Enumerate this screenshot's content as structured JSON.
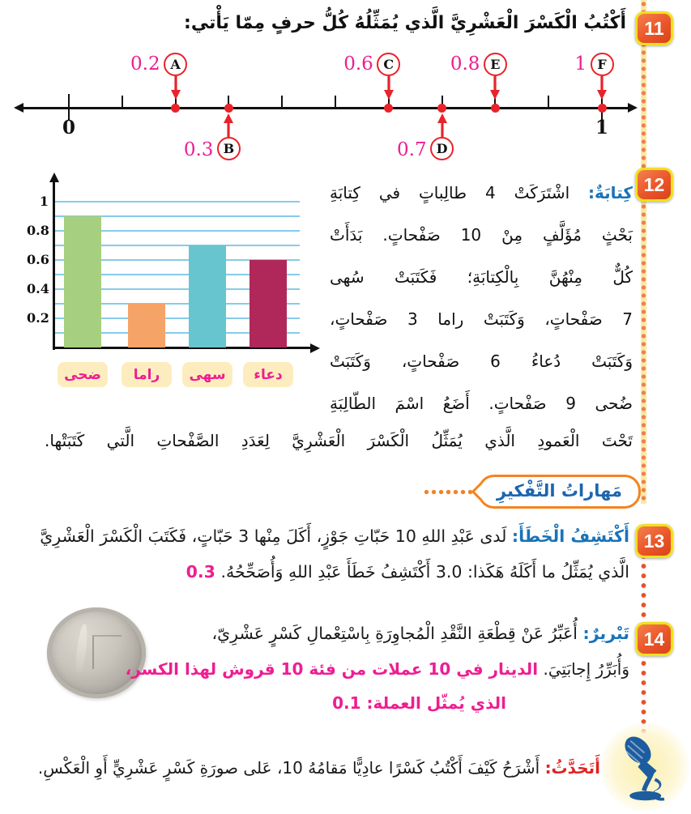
{
  "p11": {
    "number": "11",
    "title": "أَكْتُبُ الْكَسْرَ الْعَشْرِيَّ الَّذي يُمَثِّلُهُ كُلُّ حرفٍ مِمّا يَأْتي:",
    "number_line": {
      "min_label": "0",
      "max_label": "1",
      "ticks": 11,
      "points_above": [
        {
          "id": "A",
          "value": "0.2",
          "pos": 0.2
        },
        {
          "id": "C",
          "value": "0.6",
          "pos": 0.6
        },
        {
          "id": "E",
          "value": "0.8",
          "pos": 0.8
        },
        {
          "id": "F",
          "value": "1",
          "pos": 1.0
        }
      ],
      "points_below": [
        {
          "id": "B",
          "value": "0.3",
          "pos": 0.3
        },
        {
          "id": "D",
          "value": "0.7",
          "pos": 0.7
        }
      ]
    }
  },
  "p12": {
    "number": "12",
    "heading": "كِتابَةٌ:",
    "lines": [
      "اشْتَرَكَتْ 4 طالِباتٍ في كِتابَةِ",
      "بَحْثٍ مُؤَلَّفٍ مِنْ 10 صَفْحاتٍ. بَدَأَتْ",
      "كُلٌّ مِنْهُنَّ بِالْكِتابَةِ؛ فَكَتَبَتْ سُهى",
      "7 صَفْحاتٍ، وَكَتَبَتْ راما 3 صَفْحاتٍ،",
      "وَكَتَبَتْ دُعاءُ 6 صَفْحاتٍ، وَكَتَبَتْ",
      "ضُحى 9 صَفْحاتٍ. أَضَعُ اسْمَ الطّالِبَةِ"
    ],
    "last_line": "تَحْتَ الْعَمودِ الَّذي يُمَثِّلُ الْكَسْرَ الْعَشْرِيَّ لِعَدَدِ الصَّفْحاتِ الَّتي كَتَبَتْها."
  },
  "chart_data": {
    "type": "bar",
    "categories": [
      "ضحى",
      "راما",
      "سهى",
      "دعاء"
    ],
    "values": [
      0.9,
      0.3,
      0.7,
      0.6
    ],
    "bar_colors": [
      "#a6cf7f",
      "#f6a368",
      "#66c5cf",
      "#b02859"
    ],
    "ytick_labels": [
      "1",
      "0.8",
      "0.6",
      "0.4",
      "0.2"
    ],
    "ytick_values": [
      1.0,
      0.8,
      0.6,
      0.4,
      0.2
    ],
    "ylim": [
      0,
      1.1
    ],
    "grid": true,
    "gridline_step": 0.1,
    "gridline_color": "#86cbe9",
    "category_label_bg": "#fdedbe",
    "category_label_color": "#ed1e91",
    "title": "",
    "xlabel": "",
    "ylabel": "",
    "legend_position": "none"
  },
  "section_label": "مَهاراتُ التَّفْكيرِ",
  "p13": {
    "number": "13",
    "heading": "أَكْتَشِفُ الْخَطَأَ:",
    "line1": "لَدى عَبْدِ اللهِ 10 حَبّاتِ جَوْزٍ، أَكَلَ مِنْها 3 حَبّاتٍ، فَكَتَبَ الْكَسْرَ الْعَشْرِيَّ",
    "line2": "الَّذي يُمَثِّلُ ما أَكَلَهُ هَكَذا: 3.0 أَكْتَشِفُ خَطَأَ عَبْدِ اللهِ وَأُصَحِّحُهُ.",
    "answer": "0.3"
  },
  "p14": {
    "number": "14",
    "heading": "تَبْريرٌ:",
    "line1": "أُعَبِّرُ عَنْ قِطْعَةِ النَّقْدِ الْمُجاوِرَةِ بِاسْتِعْمالِ كَسْرٍ عَشْرِيّ،",
    "line2_intro": "وَأُبَرِّرُ إِجابَتِيَ.",
    "answer_line1": "الدينار في 10 عملات من فئة 10 قروش لهذا الكسر،",
    "answer_line2": "الذي يُمثّل العملة: 0.1"
  },
  "speak": {
    "heading": "أَتَحَدَّثُ:",
    "text": "أَشْرَحُ كَيْفَ أَكْتُبُ كَسْرًا عادِيًّا مَقامُهُ 10، عَلى صورَةِ كَسْرٍ عَشْرِيٍّ أَوِ الْعَكْسِ."
  },
  "colors": {
    "answer_pink": "#ed1e91",
    "heading_blue": "#1873b9",
    "speak_red": "#e02222",
    "badge_orange": "#e95529",
    "badge_border_yellow": "#f0e11c",
    "number_line_red": "#e8232a",
    "skills_border_orange": "#f5831f",
    "mic_blue": "#1d5d9f"
  }
}
